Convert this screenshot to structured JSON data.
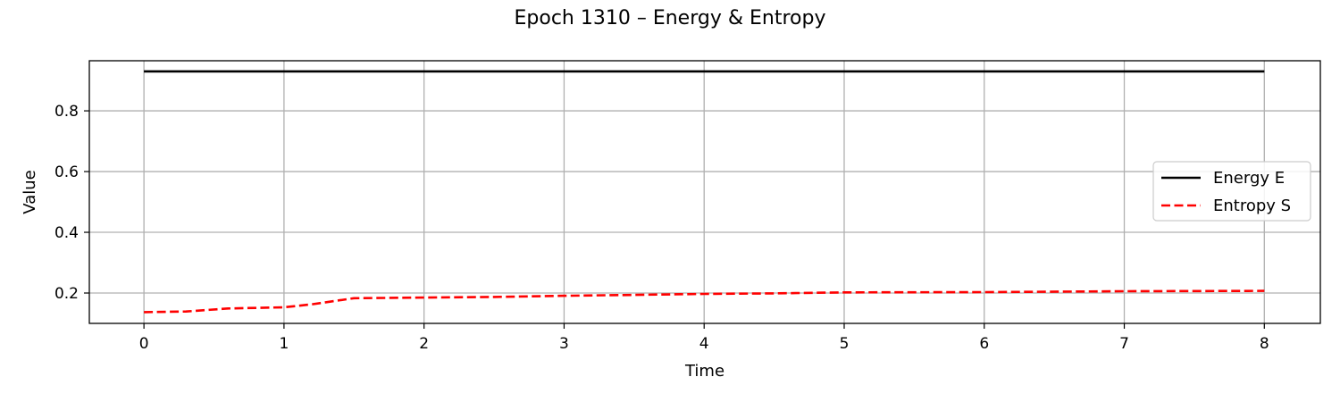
{
  "chart_data": {
    "type": "line",
    "title": "Epoch 1310 – Energy & Entropy",
    "xlabel": "Time",
    "ylabel": "Value",
    "xlim": [
      -0.39,
      8.4
    ],
    "ylim": [
      0.1,
      0.965
    ],
    "xticks": [
      0,
      1,
      2,
      3,
      4,
      5,
      6,
      7,
      8
    ],
    "yticks": [
      0.2,
      0.4,
      0.6,
      0.8
    ],
    "grid": true,
    "legend_position": "center-right",
    "series": [
      {
        "name": "Energy E",
        "color": "#000000",
        "style": "solid",
        "x": [
          0,
          8
        ],
        "y": [
          0.93,
          0.93
        ]
      },
      {
        "name": "Entropy S",
        "color": "#ff0000",
        "style": "dashed",
        "x": [
          0,
          0.3,
          0.6,
          1.0,
          1.2,
          1.5,
          2.0,
          2.5,
          3.0,
          3.5,
          4.0,
          4.5,
          5.0,
          6.0,
          7.0,
          8.0
        ],
        "y": [
          0.137,
          0.139,
          0.149,
          0.153,
          0.163,
          0.183,
          0.185,
          0.187,
          0.191,
          0.194,
          0.197,
          0.199,
          0.202,
          0.203,
          0.206,
          0.207
        ]
      }
    ]
  }
}
